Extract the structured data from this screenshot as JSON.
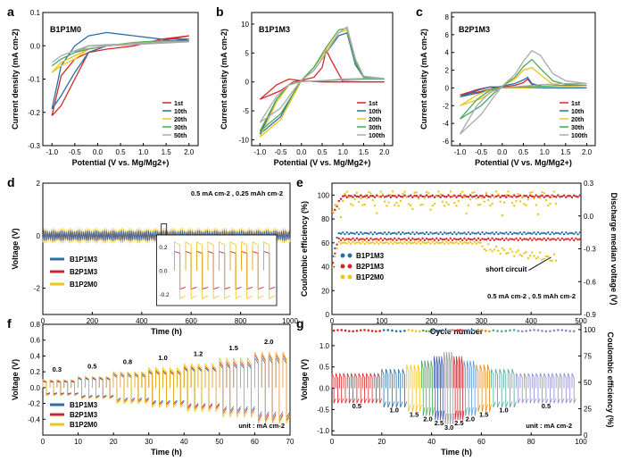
{
  "chart_data": [
    {
      "id": "a",
      "type": "line",
      "panel_letter": "a",
      "sample_label": "B1P1M0",
      "xlabel": "Potential (V vs. Mg/Mg2+)",
      "ylabel": "Current density (mA cm-2)",
      "xlim": [
        -1.2,
        2.2
      ],
      "ylim": [
        -0.3,
        0.1
      ],
      "xticks": [
        -1.0,
        -0.5,
        0.0,
        0.5,
        1.0,
        1.5,
        2.0
      ],
      "yticks": [
        -0.3,
        -0.2,
        -0.1,
        0.0,
        0.1
      ],
      "legend": [
        "1st",
        "10th",
        "20th",
        "30th",
        "50th"
      ],
      "legend_colors": [
        "#d62728",
        "#2a6fa8",
        "#f0c419",
        "#4aa85a",
        "#aaaaaa"
      ],
      "series": [
        {
          "name": "1st",
          "x": [
            -1.0,
            -0.8,
            -0.5,
            -0.2,
            0.2,
            0.8,
            1.4,
            2.0,
            1.4,
            0.8,
            0.2,
            -0.2,
            -0.5,
            -0.8,
            -1.0
          ],
          "y": [
            -0.21,
            -0.18,
            -0.1,
            -0.02,
            0.0,
            0.005,
            0.015,
            0.03,
            0.02,
            0.0,
            -0.01,
            -0.02,
            -0.04,
            -0.09,
            -0.21
          ]
        },
        {
          "name": "10th",
          "x": [
            -1.0,
            -0.8,
            -0.5,
            -0.2,
            0.2,
            0.8,
            1.4,
            2.0,
            1.4,
            0.8,
            0.2,
            -0.2,
            -0.5,
            -0.8,
            -1.0
          ],
          "y": [
            -0.19,
            -0.15,
            -0.08,
            -0.02,
            0.0,
            0.005,
            0.01,
            0.02,
            0.02,
            0.03,
            0.04,
            0.03,
            0.0,
            -0.06,
            -0.19
          ]
        },
        {
          "name": "20th",
          "x": [
            -1.0,
            -0.8,
            -0.5,
            -0.2,
            0.2,
            0.8,
            1.4,
            2.0,
            1.4,
            0.8,
            0.2,
            -0.2,
            -0.5,
            -0.8,
            -1.0
          ],
          "y": [
            -0.08,
            -0.06,
            -0.04,
            -0.01,
            0.0,
            0.005,
            0.01,
            0.015,
            0.015,
            0.01,
            0.0,
            -0.01,
            -0.03,
            -0.05,
            -0.08
          ]
        },
        {
          "name": "30th",
          "x": [
            -1.0,
            -0.8,
            -0.5,
            -0.2,
            0.2,
            0.8,
            1.4,
            2.0,
            1.4,
            0.8,
            0.2,
            -0.2,
            -0.5,
            -0.8,
            -1.0
          ],
          "y": [
            -0.06,
            -0.04,
            -0.02,
            0.0,
            0.003,
            0.005,
            0.01,
            0.015,
            0.015,
            0.01,
            0.0,
            -0.01,
            -0.02,
            -0.04,
            -0.06
          ]
        },
        {
          "name": "50th",
          "x": [
            -1.0,
            -0.8,
            -0.5,
            -0.2,
            0.2,
            0.8,
            1.4,
            2.0,
            1.4,
            0.8,
            0.2,
            -0.2,
            -0.5,
            -0.8,
            -1.0
          ],
          "y": [
            -0.05,
            -0.03,
            -0.015,
            0.0,
            0.002,
            0.004,
            0.008,
            0.012,
            0.012,
            0.008,
            0.0,
            -0.008,
            -0.015,
            -0.03,
            -0.05
          ]
        }
      ]
    },
    {
      "id": "b",
      "type": "line",
      "panel_letter": "b",
      "sample_label": "B1P1M3",
      "xlabel": "Potential (V vs. Mg/Mg2+)",
      "ylabel": "Current density (mA cm-2)",
      "xlim": [
        -1.2,
        2.2
      ],
      "ylim": [
        -11,
        12
      ],
      "xticks": [
        -1.0,
        -0.5,
        0.0,
        0.5,
        1.0,
        1.5,
        2.0
      ],
      "yticks": [
        -10,
        -5,
        0,
        5,
        10
      ],
      "legend": [
        "1st",
        "10th",
        "20th",
        "30th",
        "100th"
      ],
      "legend_colors": [
        "#d62728",
        "#2a6fa8",
        "#f0c419",
        "#4aa85a",
        "#aaaaaa"
      ],
      "series": [
        {
          "name": "1st",
          "x": [
            -1.0,
            -0.5,
            -0.2,
            0.0,
            0.3,
            0.5,
            0.6,
            0.7,
            1.0,
            1.5,
            2.0,
            1.5,
            1.0,
            0.5,
            0.0,
            -0.3,
            -0.6,
            -1.0
          ],
          "y": [
            -3.0,
            -1.5,
            0.0,
            0.3,
            0.8,
            2.5,
            5.5,
            4.0,
            0.1,
            0.0,
            0.0,
            0.0,
            0.0,
            0.0,
            0.2,
            0.5,
            -0.5,
            -3.0
          ]
        },
        {
          "name": "10th",
          "x": [
            -1.0,
            -0.5,
            -0.2,
            0.0,
            0.3,
            0.6,
            0.9,
            1.1,
            1.3,
            1.5,
            2.0,
            1.5,
            1.0,
            0.5,
            0.0,
            -0.3,
            -0.6,
            -1.0
          ],
          "y": [
            -9.0,
            -6.0,
            -2.0,
            0.3,
            2.0,
            5.0,
            8.0,
            8.5,
            3.0,
            0.8,
            0.5,
            0.5,
            0.4,
            0.2,
            0.1,
            -0.5,
            -3.0,
            -9.0
          ]
        },
        {
          "name": "20th",
          "x": [
            -1.0,
            -0.5,
            -0.2,
            0.0,
            0.3,
            0.6,
            0.9,
            1.1,
            1.3,
            1.5,
            2.0,
            1.5,
            1.0,
            0.5,
            0.0,
            -0.3,
            -0.6,
            -1.0
          ],
          "y": [
            -9.5,
            -6.5,
            -2.5,
            0.3,
            2.5,
            5.5,
            8.5,
            9.0,
            3.5,
            0.8,
            0.5,
            0.5,
            0.4,
            0.2,
            0.1,
            -0.5,
            -3.5,
            -9.5
          ]
        },
        {
          "name": "30th",
          "x": [
            -1.0,
            -0.5,
            -0.2,
            0.0,
            0.3,
            0.6,
            0.9,
            1.1,
            1.3,
            1.5,
            2.0,
            1.5,
            1.0,
            0.5,
            0.0,
            -0.3,
            -0.6,
            -1.0
          ],
          "y": [
            -8.5,
            -5.5,
            -2.0,
            0.3,
            2.5,
            6.0,
            9.0,
            9.3,
            3.5,
            0.8,
            0.5,
            0.5,
            0.4,
            0.2,
            0.1,
            -0.5,
            -3.0,
            -8.5
          ]
        },
        {
          "name": "100th",
          "x": [
            -1.0,
            -0.5,
            -0.2,
            0.0,
            0.3,
            0.6,
            0.9,
            1.1,
            1.3,
            1.5,
            2.0,
            1.5,
            1.0,
            0.5,
            0.0,
            -0.3,
            -0.6,
            -1.0
          ],
          "y": [
            -7.0,
            -4.5,
            -1.5,
            0.3,
            2.0,
            5.0,
            8.5,
            9.5,
            4.0,
            1.0,
            0.6,
            0.6,
            0.5,
            0.2,
            0.1,
            -0.5,
            -2.5,
            -7.0
          ]
        }
      ]
    },
    {
      "id": "c",
      "type": "line",
      "panel_letter": "c",
      "sample_label": "B2P1M3",
      "xlabel": "Potential (V vs. Mg/Mg2+)",
      "ylabel": "Current density (mA cm-2)",
      "xlim": [
        -1.2,
        2.2
      ],
      "ylim": [
        -6.5,
        8.5
      ],
      "xticks": [
        -1.0,
        -0.5,
        0.0,
        0.5,
        1.0,
        1.5,
        2.0
      ],
      "yticks": [
        -6,
        -4,
        -2,
        0,
        2,
        4,
        6,
        8
      ],
      "legend": [
        "1st",
        "10th",
        "20th",
        "30th",
        "100th"
      ],
      "legend_colors": [
        "#d62728",
        "#2a6fa8",
        "#f0c419",
        "#4aa85a",
        "#aaaaaa"
      ],
      "series": [
        {
          "name": "1st",
          "x": [
            -1.0,
            -0.5,
            -0.2,
            0.0,
            0.3,
            0.5,
            0.6,
            0.7,
            1.0,
            1.5,
            2.0,
            1.5,
            1.0,
            0.5,
            0.0,
            -0.3,
            -0.6,
            -1.0
          ],
          "y": [
            -0.8,
            -0.4,
            0.0,
            0.1,
            0.3,
            0.6,
            1.0,
            0.4,
            0.1,
            0.0,
            0.0,
            0.0,
            0.0,
            0.0,
            0.1,
            0.1,
            -0.2,
            -0.8
          ]
        },
        {
          "name": "10th",
          "x": [
            -1.0,
            -0.5,
            -0.2,
            0.0,
            0.3,
            0.5,
            0.6,
            0.7,
            1.0,
            1.5,
            2.0,
            1.5,
            1.0,
            0.5,
            0.0,
            -0.3,
            -0.6,
            -1.0
          ],
          "y": [
            -1.0,
            -0.5,
            0.0,
            0.2,
            0.5,
            0.9,
            1.2,
            0.5,
            0.1,
            0.0,
            0.0,
            0.0,
            0.0,
            0.0,
            0.1,
            0.1,
            -0.3,
            -1.0
          ]
        },
        {
          "name": "20th",
          "x": [
            -1.0,
            -0.5,
            -0.2,
            0.0,
            0.3,
            0.5,
            0.7,
            0.9,
            1.2,
            1.5,
            2.0,
            1.5,
            1.0,
            0.5,
            0.0,
            -0.3,
            -0.6,
            -1.0
          ],
          "y": [
            -2.0,
            -1.2,
            -0.3,
            0.2,
            1.0,
            2.0,
            2.3,
            1.5,
            0.4,
            0.2,
            0.1,
            0.1,
            0.1,
            0.0,
            0.0,
            -0.2,
            -0.8,
            -2.0
          ]
        },
        {
          "name": "30th",
          "x": [
            -1.0,
            -0.5,
            -0.2,
            0.0,
            0.3,
            0.5,
            0.7,
            0.9,
            1.2,
            1.5,
            2.0,
            1.5,
            1.0,
            0.5,
            0.0,
            -0.3,
            -0.6,
            -1.0
          ],
          "y": [
            -3.5,
            -2.0,
            -0.6,
            0.2,
            1.2,
            2.4,
            3.2,
            2.2,
            0.8,
            0.4,
            0.3,
            0.3,
            0.2,
            0.1,
            0.0,
            -0.3,
            -1.3,
            -3.5
          ]
        },
        {
          "name": "100th",
          "x": [
            -1.0,
            -0.5,
            -0.2,
            0.0,
            0.3,
            0.5,
            0.7,
            0.9,
            1.2,
            1.5,
            2.0,
            1.5,
            1.0,
            0.5,
            0.0,
            -0.3,
            -0.6,
            -1.0
          ],
          "y": [
            -5.2,
            -3.0,
            -1.0,
            0.2,
            1.5,
            3.0,
            4.2,
            3.7,
            1.6,
            0.8,
            0.5,
            0.5,
            0.4,
            0.2,
            0.0,
            -0.5,
            -2.0,
            -5.2
          ]
        }
      ]
    },
    {
      "id": "d",
      "type": "line",
      "panel_letter": "d",
      "xlabel": "Time (h)",
      "ylabel": "Voltage (V)",
      "xlim": [
        0,
        1000
      ],
      "ylim": [
        -3,
        2
      ],
      "xticks": [
        0,
        200,
        400,
        600,
        800,
        1000
      ],
      "yticks": [
        -2,
        0,
        2
      ],
      "annotation": "0.5 mA cm-2 , 0.25 mAh cm-2",
      "legend": [
        "B1P1M3",
        "B2P1M3",
        "B1P2M0"
      ],
      "legend_colors": [
        "#2a6fa8",
        "#d62728",
        "#f0c419"
      ],
      "series": [
        {
          "name": "B1P1M3",
          "amplitude": 0.2,
          "x_end": 1000
        },
        {
          "name": "B2P1M3",
          "amplitude": 0.2,
          "x_end": 1000
        },
        {
          "name": "B1P2M0",
          "amplitude": 0.3,
          "x_end": 1000
        }
      ],
      "inset": {
        "yticks": [
          0.2,
          0.0,
          -0.2
        ]
      }
    },
    {
      "id": "e",
      "type": "scatter",
      "panel_letter": "e",
      "xlabel": "Cycle number",
      "ylabel": "Coulombic efficiency (%)",
      "y2label": "Discharge median voltage (V)",
      "xlim": [
        0,
        500
      ],
      "ylim": [
        0,
        110
      ],
      "y2lim": [
        -0.9,
        0.3
      ],
      "xticks": [
        0,
        100,
        200,
        300,
        400,
        500
      ],
      "yticks": [
        0,
        20,
        40,
        60,
        80,
        100
      ],
      "y2ticks": [
        -0.9,
        -0.6,
        -0.3,
        0.0,
        0.3
      ],
      "annotations": [
        "short circuit",
        "0.5 mA cm-2 , 0.5 mAh cm-2"
      ],
      "legend": [
        "B1P1M3",
        "B2P1M3",
        "B1P2M0"
      ],
      "legend_colors": [
        "#2a6fa8",
        "#d62728",
        "#f0c419"
      ],
      "series": [
        {
          "name": "B1P1M3",
          "ce_level": 99,
          "mv_level": 68
        },
        {
          "name": "B2P1M3",
          "ce_level": 99,
          "mv_level": 63
        },
        {
          "name": "B1P2M0",
          "ce_level": 97,
          "mv_level": 60,
          "end_cycle": 450
        }
      ]
    },
    {
      "id": "f",
      "type": "line",
      "panel_letter": "f",
      "xlabel": "Time (h)",
      "ylabel": "Voltage (V)",
      "xlim": [
        0,
        70
      ],
      "ylim": [
        -0.6,
        0.8
      ],
      "xticks": [
        0,
        10,
        20,
        30,
        40,
        50,
        60,
        70
      ],
      "yticks": [
        -0.4,
        -0.2,
        0.0,
        0.2,
        0.4,
        0.6,
        0.8
      ],
      "rate_labels": [
        "0.3",
        "0.5",
        "0.8",
        "1.0",
        "1.2",
        "1.5",
        "2.0"
      ],
      "annotation": "unit : mA cm-2",
      "legend": [
        "B1P1M3",
        "B2P1M3",
        "B1P2M0"
      ],
      "legend_colors": [
        "#2a6fa8",
        "#d62728",
        "#f0c419"
      ],
      "series": [
        {
          "name": "B1P1M3",
          "amplitudes": [
            0.08,
            0.12,
            0.16,
            0.2,
            0.25,
            0.3,
            0.38
          ]
        },
        {
          "name": "B2P1M3",
          "amplitudes": [
            0.09,
            0.13,
            0.18,
            0.22,
            0.27,
            0.33,
            0.42
          ]
        },
        {
          "name": "B1P2M0",
          "amplitudes": [
            0.1,
            0.14,
            0.2,
            0.25,
            0.3,
            0.37,
            0.45
          ]
        }
      ]
    },
    {
      "id": "g",
      "type": "line",
      "panel_letter": "g",
      "xlabel": "Time (h)",
      "ylabel": "Voltage (V)",
      "y2label": "Coulombic efficiency (%)",
      "xlim": [
        0,
        100
      ],
      "ylim": [
        -1.1,
        1.5
      ],
      "y2lim": [
        0,
        105
      ],
      "xticks": [
        0,
        20,
        40,
        60,
        80,
        100
      ],
      "yticks": [
        -1.0,
        -0.5,
        0.0,
        0.5,
        1.0
      ],
      "y2ticks": [
        0,
        25,
        50,
        75,
        100
      ],
      "rate_labels": [
        "0.5",
        "1.0",
        "1.5",
        "2.0",
        "2.5",
        "3.0",
        "2.5",
        "2.0",
        "1.5",
        "1.0",
        "0.5"
      ],
      "annotation": "unit : mA cm-2",
      "segments": [
        {
          "rate": 0.5,
          "t0": 0,
          "t1": 20,
          "color": "#d62728",
          "amp": 0.35
        },
        {
          "rate": 1.0,
          "t0": 20,
          "t1": 30,
          "color": "#2a6fa8",
          "amp": 0.45
        },
        {
          "rate": 1.5,
          "t0": 30,
          "t1": 36,
          "color": "#f0c419",
          "amp": 0.55
        },
        {
          "rate": 2.0,
          "t0": 36,
          "t1": 41,
          "color": "#4aa85a",
          "amp": 0.65
        },
        {
          "rate": 2.5,
          "t0": 41,
          "t1": 45,
          "color": "#3b5aa8",
          "amp": 0.75
        },
        {
          "rate": 3.0,
          "t0": 45,
          "t1": 49,
          "color": "#999999",
          "amp": 0.85
        },
        {
          "rate": 2.5,
          "t0": 49,
          "t1": 53,
          "color": "#d62728",
          "amp": 0.75
        },
        {
          "rate": 2.0,
          "t0": 53,
          "t1": 58,
          "color": "#5b9bd5",
          "amp": 0.65
        },
        {
          "rate": 1.5,
          "t0": 58,
          "t1": 64,
          "color": "#e08a1a",
          "amp": 0.55
        },
        {
          "rate": 1.0,
          "t0": 64,
          "t1": 74,
          "color": "#4aa89a",
          "amp": 0.45
        },
        {
          "rate": 0.5,
          "t0": 74,
          "t1": 98,
          "color": "#8a8ad0",
          "amp": 0.35
        }
      ],
      "ce_level": 99
    }
  ]
}
